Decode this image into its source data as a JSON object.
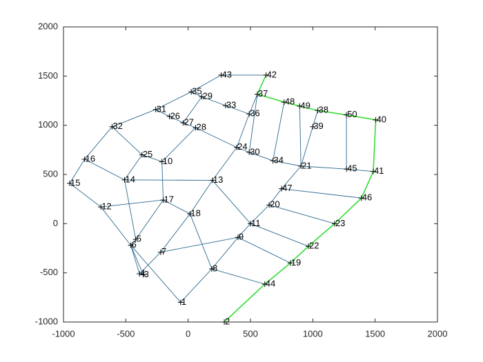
{
  "chart_data": {
    "type": "graph",
    "labels": [
      "1",
      "2",
      "3",
      "4",
      "5",
      "6",
      "7",
      "8",
      "9",
      "10",
      "11",
      "12",
      "13",
      "14",
      "15",
      "16",
      "17",
      "18",
      "19",
      "20",
      "21",
      "22",
      "23",
      "24",
      "25",
      "26",
      "27",
      "28",
      "29",
      "30",
      "31",
      "32",
      "33",
      "34",
      "35",
      "36",
      "37",
      "38",
      "39",
      "40",
      "41",
      "42",
      "43",
      "44",
      "45",
      "46",
      "47",
      "48",
      "49",
      "50"
    ],
    "x": [
      -60,
      290,
      -360,
      -390,
      -420,
      -460,
      -220,
      190,
      400,
      -210,
      500,
      -700,
      195,
      -510,
      -950,
      -830,
      -200,
      15,
      820,
      650,
      905,
      965,
      1175,
      390,
      -370,
      -150,
      -40,
      60,
      110,
      490,
      -260,
      -610,
      300,
      680,
      25,
      490,
      555,
      1040,
      1000,
      1505,
      1485,
      625,
      265,
      615,
      1270,
      1390,
      750,
      770,
      895,
      1270
    ],
    "y": [
      -800,
      -1000,
      -520,
      -510,
      -160,
      -220,
      -290,
      -460,
      -140,
      630,
      0,
      170,
      440,
      445,
      410,
      655,
      240,
      100,
      -400,
      190,
      585,
      -230,
      0,
      775,
      700,
      1090,
      1025,
      975,
      1290,
      725,
      1160,
      985,
      1200,
      640,
      1340,
      1115,
      1315,
      1150,
      985,
      1055,
      530,
      1510,
      1510,
      -615,
      555,
      260,
      355,
      1235,
      1195,
      1105
    ],
    "edges": [
      [
        42,
        41
      ],
      [
        42,
        34
      ],
      [
        34,
        28
      ],
      [
        34,
        30
      ],
      [
        30,
        31
      ],
      [
        30,
        25
      ],
      [
        25,
        26
      ],
      [
        26,
        28
      ],
      [
        28,
        32
      ],
      [
        26,
        27
      ],
      [
        27,
        9
      ],
      [
        27,
        23
      ],
      [
        9,
        24
      ],
      [
        24,
        31
      ],
      [
        24,
        13
      ],
      [
        31,
        15
      ],
      [
        15,
        14
      ],
      [
        15,
        13
      ],
      [
        14,
        11
      ],
      [
        11,
        16
      ],
      [
        13,
        12
      ],
      [
        11,
        5
      ],
      [
        13,
        4
      ],
      [
        16,
        4
      ],
      [
        16,
        9
      ],
      [
        16,
        17
      ],
      [
        17,
        12
      ],
      [
        12,
        23
      ],
      [
        23,
        35
      ],
      [
        35,
        32
      ],
      [
        35,
        36
      ],
      [
        36,
        29
      ],
      [
        47,
        33
      ],
      [
        48,
        20
      ],
      [
        37,
        38
      ],
      [
        38,
        20
      ],
      [
        20,
        33
      ],
      [
        33,
        29
      ],
      [
        29,
        23
      ],
      [
        20,
        46
      ],
      [
        20,
        44
      ],
      [
        44,
        40
      ],
      [
        44,
        49
      ],
      [
        46,
        19
      ],
      [
        46,
        45
      ],
      [
        19,
        10
      ],
      [
        19,
        22
      ],
      [
        0,
        5
      ],
      [
        5,
        4
      ],
      [
        5,
        2
      ],
      [
        5,
        3
      ],
      [
        3,
        6
      ],
      [
        6,
        17
      ],
      [
        6,
        8
      ],
      [
        8,
        10
      ],
      [
        10,
        12
      ],
      [
        10,
        21
      ],
      [
        8,
        18
      ],
      [
        8,
        7
      ],
      [
        7,
        0
      ],
      [
        7,
        43
      ],
      [
        7,
        17
      ]
    ],
    "edge_color": "#2b6a8e",
    "highlight_edges": [
      [
        41,
        36
      ],
      [
        36,
        47
      ],
      [
        47,
        48
      ],
      [
        48,
        37
      ],
      [
        37,
        49
      ],
      [
        49,
        39
      ],
      [
        39,
        40
      ],
      [
        40,
        45
      ],
      [
        45,
        22
      ],
      [
        22,
        21
      ],
      [
        21,
        18
      ],
      [
        18,
        43
      ],
      [
        43,
        1
      ]
    ],
    "highlight_color": "#33dd33",
    "marker_color": "#000000",
    "xlim": [
      -1000,
      2000
    ],
    "xticks": [
      -1000,
      -500,
      0,
      500,
      1000,
      1500,
      2000
    ],
    "ylim": [
      -1000,
      2000
    ],
    "yticks": [
      -1000,
      -500,
      0,
      500,
      1000,
      1500,
      2000
    ],
    "grid": false
  }
}
